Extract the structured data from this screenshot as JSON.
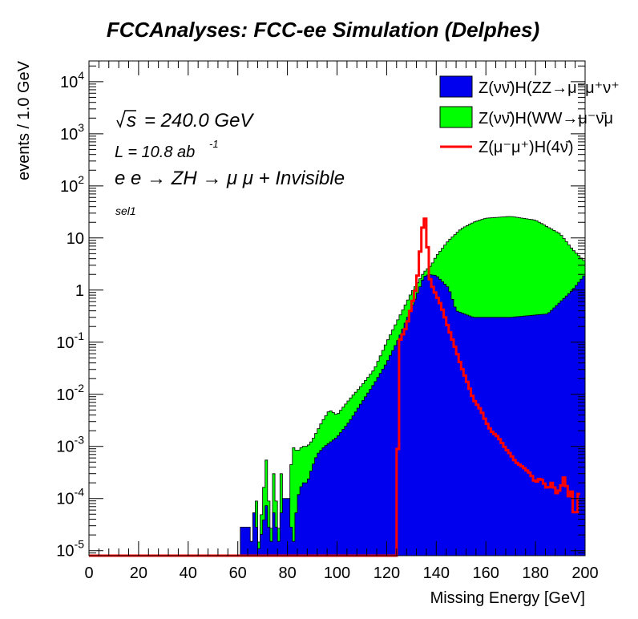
{
  "chart_data": {
    "type": "histogram",
    "title": "FCCAnalyses: FCC-ee Simulation (Delphes)",
    "xlabel": "Missing Energy [GeV]",
    "ylabel": "events / 1.0 GeV",
    "xlim": [
      0,
      200
    ],
    "ylim": [
      8e-06,
      25000
    ],
    "yscale": "log",
    "bin_width": 1.0,
    "x_ticks": [
      0,
      20,
      40,
      60,
      80,
      100,
      120,
      140,
      160,
      180,
      200
    ],
    "y_ticks": [
      {
        "value": 1e-05,
        "base": "10",
        "exp": "-5"
      },
      {
        "value": 0.0001,
        "base": "10",
        "exp": "-4"
      },
      {
        "value": 0.001,
        "base": "10",
        "exp": "-3"
      },
      {
        "value": 0.01,
        "base": "10",
        "exp": "-2"
      },
      {
        "value": 0.1,
        "base": "10",
        "exp": "-1"
      },
      {
        "value": 1,
        "base": "1",
        "exp": ""
      },
      {
        "value": 10,
        "base": "10",
        "exp": ""
      },
      {
        "value": 100,
        "base": "10",
        "exp": "2"
      },
      {
        "value": 1000,
        "base": "10",
        "exp": "3"
      },
      {
        "value": 10000,
        "base": "10",
        "exp": "4"
      }
    ],
    "annotations": {
      "sqrt_s": "= 240.0 GeV",
      "lumi": "L = 10.8 ab",
      "lumi_exp": "-1",
      "process": "e e → ZH → μ μ + Invisible",
      "selection": "sel1"
    },
    "legend_position": "top-right",
    "series": [
      {
        "name": "Z(νν̄)H(ZZ→μ⁻μ⁺ν⁺",
        "style": "stacked-fill",
        "color": "#0000ee",
        "points": [
          [
            61,
            8e-06
          ],
          [
            62,
            0.0001
          ],
          [
            63,
            8e-06
          ],
          [
            64,
            0.0001
          ],
          [
            65,
            8e-06
          ],
          [
            67,
            0.0001
          ],
          [
            68,
            8e-06
          ],
          [
            72,
            0.0001
          ],
          [
            73,
            8e-06
          ],
          [
            75,
            0.0001
          ],
          [
            76,
            8e-06
          ],
          [
            78,
            0.0001
          ],
          [
            81,
            0.0001
          ],
          [
            82,
            8e-06
          ],
          [
            84,
            0.0001
          ],
          [
            86,
            0.0002
          ],
          [
            88,
            0.0002
          ],
          [
            90,
            0.0004
          ],
          [
            92,
            0.0007
          ],
          [
            95,
            0.001
          ],
          [
            100,
            0.0015
          ],
          [
            105,
            0.003
          ],
          [
            110,
            0.007
          ],
          [
            115,
            0.016
          ],
          [
            120,
            0.04
          ],
          [
            125,
            0.12
          ],
          [
            130,
            0.45
          ],
          [
            133,
            1.0
          ],
          [
            135,
            1.8
          ],
          [
            137,
            2.0
          ],
          [
            140,
            1.9
          ],
          [
            145,
            1.1
          ],
          [
            148,
            0.4
          ],
          [
            155,
            0.3
          ],
          [
            170,
            0.3
          ],
          [
            185,
            0.35
          ],
          [
            195,
            1.0
          ],
          [
            200,
            2.0
          ]
        ]
      },
      {
        "name": "Z(νν̄)H(WW→μ⁻ν̄μ",
        "style": "stacked-fill",
        "color": "#00ff00",
        "points": [
          [
            67,
            0.001
          ],
          [
            68,
            8e-06
          ],
          [
            72,
            0.001
          ],
          [
            73,
            8e-06
          ],
          [
            75,
            0.001
          ],
          [
            76,
            8e-06
          ],
          [
            78,
            0.001
          ],
          [
            79,
            8e-06
          ],
          [
            82,
            0.001
          ],
          [
            84,
            0.0008
          ],
          [
            86,
            0.001
          ],
          [
            88,
            0.001
          ],
          [
            90,
            0.0013
          ],
          [
            94,
            0.003
          ],
          [
            97,
            0.005
          ],
          [
            100,
            0.004
          ],
          [
            105,
            0.008
          ],
          [
            110,
            0.015
          ],
          [
            115,
            0.03
          ],
          [
            120,
            0.1
          ],
          [
            125,
            0.3
          ],
          [
            130,
            0.9
          ],
          [
            133,
            1.5
          ],
          [
            135,
            2.2
          ],
          [
            138,
            3.0
          ],
          [
            140,
            4.5
          ],
          [
            145,
            9
          ],
          [
            150,
            15
          ],
          [
            155,
            20
          ],
          [
            160,
            24
          ],
          [
            170,
            26
          ],
          [
            180,
            22
          ],
          [
            190,
            12
          ],
          [
            195,
            6
          ],
          [
            200,
            3.5
          ]
        ]
      },
      {
        "name": "Z(μ⁻μ⁺)H(4ν̄)",
        "style": "line",
        "color": "#ff0000",
        "points": [
          [
            0,
            8e-06
          ],
          [
            124,
            8e-06
          ],
          [
            125,
            0.1
          ],
          [
            128,
            0.2
          ],
          [
            130,
            0.5
          ],
          [
            132,
            1.2
          ],
          [
            133,
            3
          ],
          [
            134,
            10
          ],
          [
            135,
            25
          ],
          [
            136,
            22
          ],
          [
            137,
            2
          ],
          [
            138,
            1.3
          ],
          [
            140,
            0.8
          ],
          [
            142,
            0.5
          ],
          [
            145,
            0.18
          ],
          [
            148,
            0.07
          ],
          [
            150,
            0.035
          ],
          [
            153,
            0.015
          ],
          [
            155,
            0.008
          ],
          [
            158,
            0.005
          ],
          [
            160,
            0.003
          ],
          [
            162,
            0.002
          ],
          [
            165,
            0.0015
          ],
          [
            168,
            0.0009
          ],
          [
            170,
            0.0007
          ],
          [
            172,
            0.0005
          ],
          [
            175,
            0.0004
          ],
          [
            178,
            0.0003
          ],
          [
            180,
            0.0002
          ],
          [
            182,
            0.00025
          ],
          [
            185,
            0.00015
          ],
          [
            187,
            0.00022
          ],
          [
            188,
            0.00012
          ],
          [
            190,
            0.00015
          ],
          [
            192,
            0.0003
          ],
          [
            193,
            0.0001
          ],
          [
            195,
            0.00015
          ],
          [
            196,
            2e-05
          ],
          [
            197,
            0.00015
          ],
          [
            198,
            0.0001
          ]
        ]
      }
    ]
  }
}
